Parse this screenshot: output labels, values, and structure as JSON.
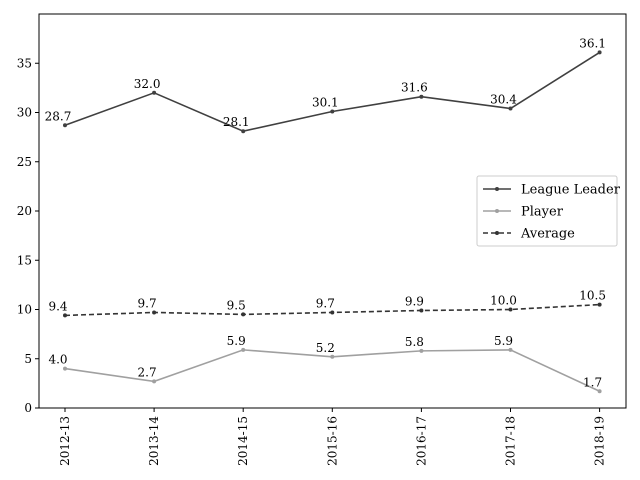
{
  "chart_data": {
    "type": "line",
    "title": "",
    "xlabel": "",
    "ylabel": "",
    "categories": [
      "2012-13",
      "2013-14",
      "2014-15",
      "2015-16",
      "2016-17",
      "2017-18",
      "2018-19"
    ],
    "ylim": [
      0,
      40
    ],
    "yticks": [
      0,
      5,
      10,
      15,
      20,
      25,
      30,
      35
    ],
    "grid": false,
    "legend_position": "center-right",
    "series": [
      {
        "name": "League Leader",
        "values": [
          28.7,
          32.0,
          28.1,
          30.1,
          31.6,
          30.4,
          36.1
        ],
        "labels": [
          "28.7",
          "32.0",
          "28.1",
          "30.1",
          "31.6",
          "30.4",
          "36.1"
        ],
        "color": "#404040",
        "style": "solid"
      },
      {
        "name": "Player",
        "values": [
          4.0,
          2.7,
          5.9,
          5.2,
          5.8,
          5.9,
          1.7
        ],
        "labels": [
          "4.0",
          "2.7",
          "5.9",
          "5.2",
          "5.8",
          "5.9",
          "1.7"
        ],
        "color": "#a0a0a0",
        "style": "solid"
      },
      {
        "name": "Average",
        "values": [
          9.4,
          9.7,
          9.5,
          9.7,
          9.9,
          10.0,
          10.5
        ],
        "labels": [
          "9.4",
          "9.7",
          "9.5",
          "9.7",
          "9.9",
          "10.0",
          "10.5"
        ],
        "color": "#333333",
        "style": "dashed"
      }
    ]
  }
}
